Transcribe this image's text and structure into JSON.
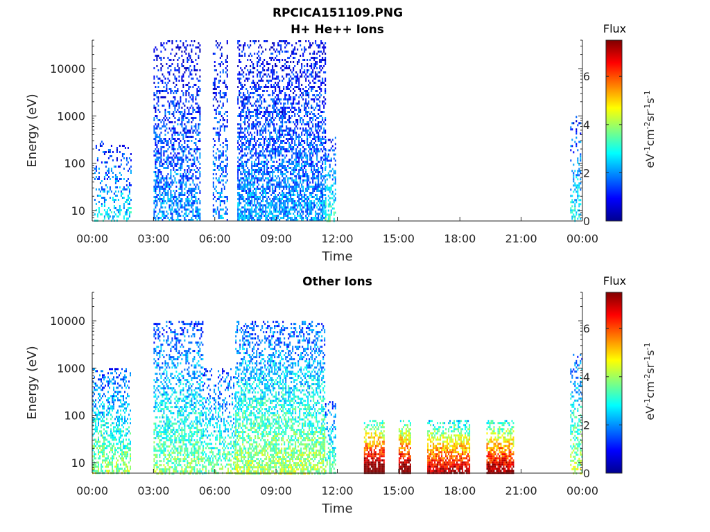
{
  "figure_title": "RPCICA151109.PNG",
  "chart_data": [
    {
      "type": "heatmap",
      "title": "H+ He++ Ions",
      "xlabel": "Time",
      "ylabel": "Energy (eV)",
      "x_ticks": [
        "00:00",
        "03:00",
        "06:00",
        "09:00",
        "12:00",
        "15:00",
        "18:00",
        "21:00",
        "00:00"
      ],
      "y_ticks": [
        "10",
        "100",
        "1000",
        "10000"
      ],
      "yscale": "log",
      "ylim": [
        6,
        40000
      ],
      "xlim_hours": [
        0,
        24
      ],
      "colorbar": {
        "title": "Flux",
        "label": "eV-1cm-2sr-1s-1",
        "ticks": [
          "0",
          "2",
          "4",
          "6"
        ],
        "range": [
          0,
          7.5
        ],
        "colormap": "jet"
      },
      "regions": [
        {
          "t_start_h": 0.1,
          "t_end_h": 1.9,
          "e_min": 6,
          "e_max": 300,
          "flux": 2.2,
          "density": 0.35
        },
        {
          "t_start_h": 3.0,
          "t_end_h": 5.3,
          "e_min": 6,
          "e_max": 40000,
          "flux": 1.6,
          "density": 0.55
        },
        {
          "t_start_h": 5.9,
          "t_end_h": 6.6,
          "e_min": 6,
          "e_max": 40000,
          "flux": 1.6,
          "density": 0.4
        },
        {
          "t_start_h": 7.1,
          "t_end_h": 11.4,
          "e_min": 6,
          "e_max": 40000,
          "flux": 1.7,
          "density": 0.7
        },
        {
          "t_start_h": 11.4,
          "t_end_h": 11.9,
          "e_min": 6,
          "e_max": 400,
          "flux": 2.6,
          "density": 0.5
        },
        {
          "t_start_h": 23.4,
          "t_end_h": 23.9,
          "e_min": 6,
          "e_max": 1000,
          "flux": 2.4,
          "density": 0.4
        }
      ]
    },
    {
      "type": "heatmap",
      "title": "Other Ions",
      "xlabel": "Time",
      "ylabel": "Energy (eV)",
      "x_ticks": [
        "00:00",
        "03:00",
        "06:00",
        "09:00",
        "12:00",
        "15:00",
        "18:00",
        "21:00",
        "00:00"
      ],
      "y_ticks": [
        "10",
        "100",
        "1000",
        "10000"
      ],
      "yscale": "log",
      "ylim": [
        6,
        40000
      ],
      "xlim_hours": [
        0,
        24
      ],
      "colorbar": {
        "title": "Flux",
        "label": "eV-1cm-2sr-1s-1",
        "ticks": [
          "0",
          "2",
          "4",
          "6"
        ],
        "range": [
          0,
          7.5
        ],
        "colormap": "jet"
      },
      "regions": [
        {
          "t_start_h": 0.0,
          "t_end_h": 1.9,
          "e_min": 6,
          "e_max": 1000,
          "flux": 3.2,
          "density": 0.6
        },
        {
          "t_start_h": 3.0,
          "t_end_h": 5.4,
          "e_min": 6,
          "e_max": 10000,
          "flux": 3.0,
          "density": 0.6
        },
        {
          "t_start_h": 5.4,
          "t_end_h": 7.0,
          "e_min": 6,
          "e_max": 1000,
          "flux": 3.0,
          "density": 0.5
        },
        {
          "t_start_h": 7.0,
          "t_end_h": 11.4,
          "e_min": 6,
          "e_max": 10000,
          "flux": 3.3,
          "density": 0.7
        },
        {
          "t_start_h": 11.4,
          "t_end_h": 11.9,
          "e_min": 6,
          "e_max": 200,
          "flux": 3.0,
          "density": 0.5
        },
        {
          "t_start_h": 13.3,
          "t_end_h": 14.3,
          "e_min": 6,
          "e_max": 80,
          "flux": 6.8,
          "density": 0.95
        },
        {
          "t_start_h": 15.0,
          "t_end_h": 15.6,
          "e_min": 6,
          "e_max": 80,
          "flux": 6.6,
          "density": 0.95
        },
        {
          "t_start_h": 16.4,
          "t_end_h": 18.5,
          "e_min": 6,
          "e_max": 80,
          "flux": 6.0,
          "density": 0.95
        },
        {
          "t_start_h": 19.3,
          "t_end_h": 20.6,
          "e_min": 6,
          "e_max": 80,
          "flux": 6.2,
          "density": 0.95
        },
        {
          "t_start_h": 23.4,
          "t_end_h": 24.0,
          "e_min": 6,
          "e_max": 2000,
          "flux": 3.4,
          "density": 0.5
        }
      ]
    }
  ]
}
